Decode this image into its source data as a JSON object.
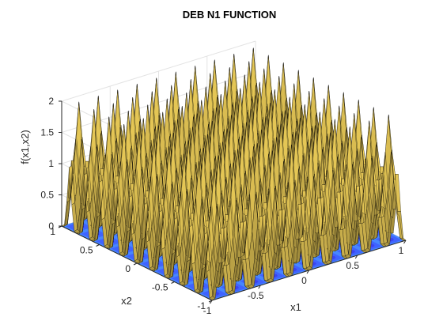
{
  "chart_data": {
    "type": "surface",
    "title": "DEB N1 FUNCTION",
    "xlabel": "x1",
    "ylabel": "x2",
    "zlabel": "f(x1,x2)",
    "function": "f(x1,x2) = sin^6(5*pi*x1) + sin^6(5*pi*x2)",
    "xlim": [
      -1,
      1
    ],
    "ylim": [
      -1,
      1
    ],
    "zlim": [
      0,
      2
    ],
    "x_ticks": [
      -1,
      -0.5,
      0,
      0.5,
      1
    ],
    "x_tick_labels": [
      "-1",
      "-0.5",
      "0",
      "0.5",
      "1"
    ],
    "y_ticks": [
      -1,
      -0.5,
      0,
      0.5,
      1
    ],
    "y_tick_labels": [
      "-1",
      "-0.5",
      "0",
      "0.5",
      "1"
    ],
    "z_ticks": [
      0,
      0.5,
      1,
      1.5,
      2
    ],
    "z_tick_labels": [
      "0",
      "0.5",
      "1",
      "1.5",
      "2"
    ],
    "peaks_per_axis": 10,
    "grid": true,
    "contour_projection": true,
    "surface_color": "#f2d25a",
    "surface_edge_color": "#000000",
    "contour_base_color": "#3f63ff",
    "contour_peak_color": "#3a2be0",
    "contour_low_color": "#55c8ff"
  }
}
